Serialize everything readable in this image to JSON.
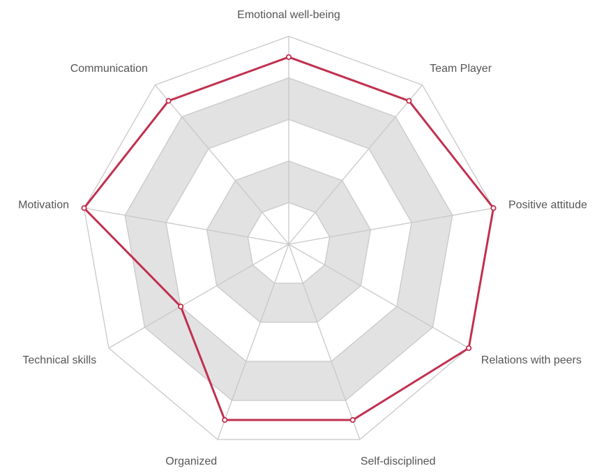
{
  "chart_data": {
    "type": "radar",
    "categories": [
      "Emotional well-being",
      "Team Player",
      "Positive attitude",
      "Relations with peers",
      "Self-disciplined",
      "Organized",
      "Technical skills",
      "Motivation",
      "Communication"
    ],
    "series": [
      {
        "values": [
          4.5,
          4.5,
          5.0,
          5.0,
          4.5,
          4.5,
          3.0,
          5.0,
          4.5
        ]
      }
    ],
    "rlim": [
      0,
      5
    ],
    "rings": 5,
    "grid": true,
    "colors": {
      "series": "#c0304f",
      "band": "#e2e2e2",
      "grid": "#c8c8c8",
      "point_fill": "#ffffff"
    }
  }
}
